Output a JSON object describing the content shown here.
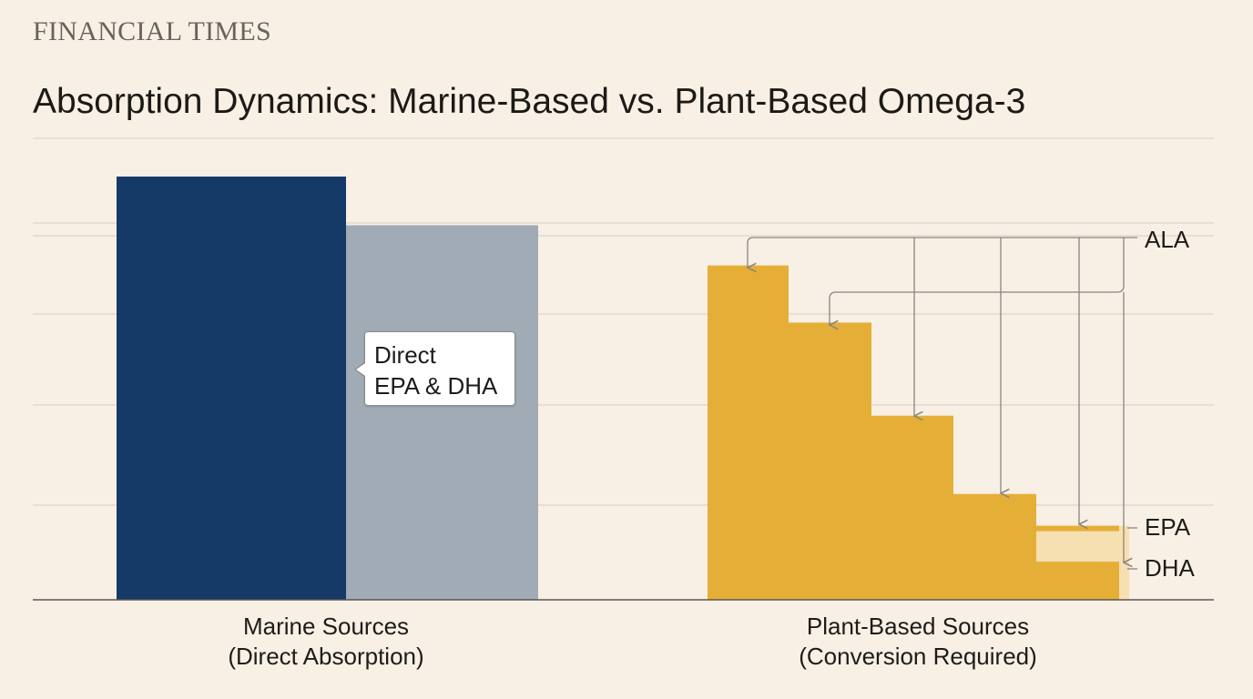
{
  "brand": "FINANCIAL TIMES",
  "title": "Absorption Dynamics: Marine-Based vs. Plant-Based Omega-3",
  "colors": {
    "background": "#f8f0e5",
    "marine_primary": "#163a67",
    "marine_secondary": "#a1abb6",
    "plant": "#e5ae37",
    "plant_light": "#f6dfb0",
    "gridline": "#ddd4c8",
    "axis": "#5a5650",
    "connector": "#8a857e"
  },
  "chart_data": {
    "type": "bar",
    "title": "Absorption Dynamics: Marine-Based vs. Plant-Based Omega-3",
    "xlabel": "",
    "ylabel": "",
    "ylim": [
      0,
      100
    ],
    "grid": true,
    "categories": [
      {
        "line1": "Marine Sources",
        "line2": "(Direct Absorption)"
      },
      {
        "line1": "Plant-Based Sources",
        "line2": "(Conversion Required)"
      }
    ],
    "marine": {
      "bars": [
        {
          "name": "marine-bar-primary",
          "value": 100
        },
        {
          "name": "marine-bar-secondary",
          "value": 88.5
        }
      ],
      "callout": {
        "line1": "Direct",
        "line2": "EPA & DHA"
      }
    },
    "plant": {
      "steps": [
        79,
        65.5,
        43.5,
        25,
        17.5,
        9
      ],
      "epa_band": [
        9,
        17.5
      ],
      "stage_labels": [
        "ALA",
        "EPA",
        "DHA"
      ]
    }
  }
}
